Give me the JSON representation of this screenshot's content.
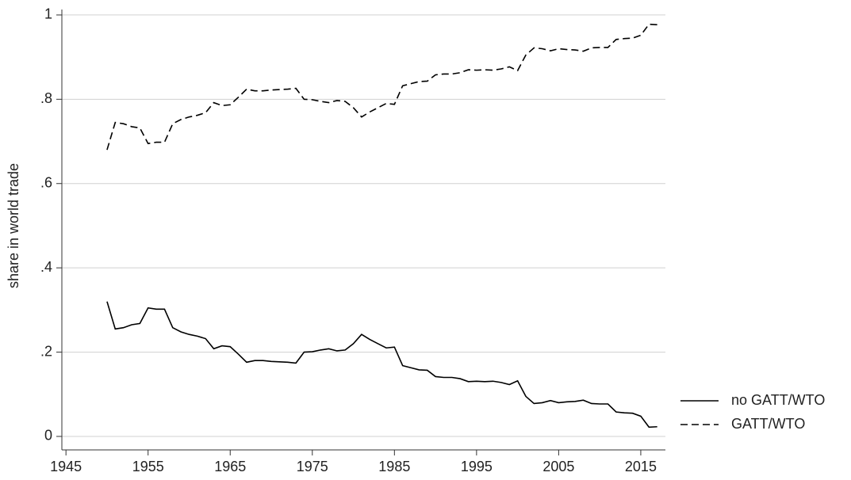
{
  "chart_data": {
    "type": "line",
    "y_label": "share in world trade",
    "x": [
      1950,
      1951,
      1952,
      1953,
      1954,
      1955,
      1956,
      1957,
      1958,
      1959,
      1960,
      1961,
      1962,
      1963,
      1964,
      1965,
      1966,
      1967,
      1968,
      1969,
      1970,
      1971,
      1972,
      1973,
      1974,
      1975,
      1976,
      1977,
      1978,
      1979,
      1980,
      1981,
      1982,
      1983,
      1984,
      1985,
      1986,
      1987,
      1988,
      1989,
      1990,
      1991,
      1992,
      1993,
      1994,
      1995,
      1996,
      1997,
      1998,
      1999,
      2000,
      2001,
      2002,
      2003,
      2004,
      2005,
      2006,
      2007,
      2008,
      2009,
      2010,
      2011,
      2012,
      2013,
      2014,
      2015,
      2016,
      2017
    ],
    "series": [
      {
        "name": "no GATT/WTO",
        "color": "#000000",
        "style": "solid",
        "values": [
          0.32,
          0.255,
          0.258,
          0.265,
          0.268,
          0.305,
          0.302,
          0.302,
          0.258,
          0.248,
          0.242,
          0.238,
          0.232,
          0.208,
          0.215,
          0.213,
          0.195,
          0.176,
          0.18,
          0.18,
          0.178,
          0.177,
          0.176,
          0.174,
          0.2,
          0.201,
          0.205,
          0.208,
          0.203,
          0.205,
          0.22,
          0.242,
          0.23,
          0.22,
          0.21,
          0.212,
          0.168,
          0.163,
          0.158,
          0.157,
          0.142,
          0.14,
          0.14,
          0.137,
          0.13,
          0.131,
          0.13,
          0.131,
          0.128,
          0.123,
          0.132,
          0.095,
          0.078,
          0.08,
          0.085,
          0.08,
          0.082,
          0.083,
          0.086,
          0.078,
          0.077,
          0.077,
          0.058,
          0.056,
          0.055,
          0.048,
          0.022,
          0.023
        ]
      },
      {
        "name": "GATT/WTO",
        "color": "#000000",
        "style": "dashed",
        "values": [
          0.68,
          0.745,
          0.742,
          0.735,
          0.732,
          0.695,
          0.698,
          0.698,
          0.742,
          0.752,
          0.758,
          0.762,
          0.768,
          0.792,
          0.785,
          0.787,
          0.805,
          0.824,
          0.82,
          0.82,
          0.822,
          0.823,
          0.824,
          0.826,
          0.8,
          0.799,
          0.795,
          0.792,
          0.797,
          0.795,
          0.78,
          0.758,
          0.77,
          0.78,
          0.79,
          0.788,
          0.832,
          0.837,
          0.842,
          0.843,
          0.858,
          0.86,
          0.86,
          0.863,
          0.87,
          0.869,
          0.87,
          0.869,
          0.872,
          0.877,
          0.868,
          0.905,
          0.922,
          0.92,
          0.915,
          0.92,
          0.918,
          0.917,
          0.914,
          0.922,
          0.923,
          0.923,
          0.942,
          0.944,
          0.945,
          0.952,
          0.978,
          0.977
        ]
      }
    ],
    "xlim": [
      1944.5,
      2018
    ],
    "xticks": [
      1945,
      1955,
      1965,
      1975,
      1985,
      1995,
      2005,
      2015
    ],
    "ylim": [
      -0.032,
      1.013
    ],
    "yticks": [
      0,
      {
        "value": 0.2,
        "label": ".2"
      },
      {
        "value": 0.4,
        "label": ".4"
      },
      {
        "value": 0.6,
        "label": ".6"
      },
      {
        "value": 0.8,
        "label": ".8"
      },
      1
    ],
    "grid": true,
    "legend": "right"
  }
}
